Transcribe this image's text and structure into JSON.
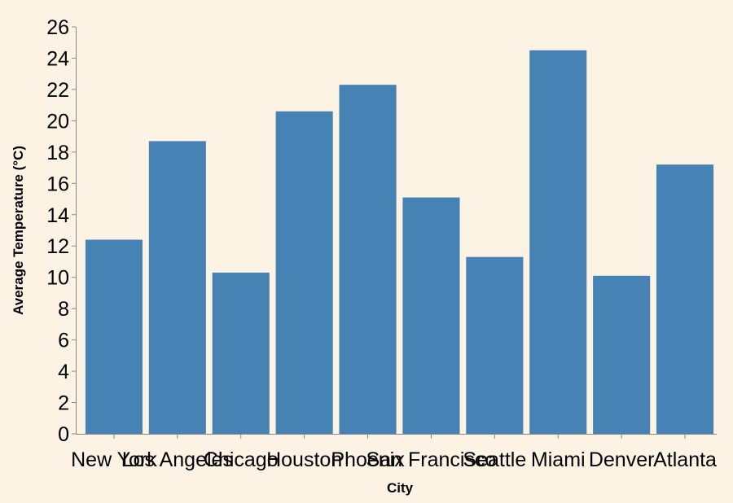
{
  "chart_data": {
    "type": "bar",
    "categories": [
      "New York",
      "Los Angeles",
      "Chicago",
      "Houston",
      "Phoenix",
      "San Francisco",
      "Seattle",
      "Miami",
      "Denver",
      "Atlanta"
    ],
    "values": [
      12.4,
      18.7,
      10.3,
      20.6,
      22.3,
      15.1,
      11.3,
      24.5,
      10.1,
      17.2
    ],
    "xlabel": "City",
    "ylabel": "Average Temperature (°C)",
    "ylim": [
      0,
      26
    ],
    "yticks": [
      0,
      2,
      4,
      6,
      8,
      10,
      12,
      14,
      16,
      18,
      20,
      22,
      24,
      26
    ],
    "grid": false,
    "bar_color": "#4682b4",
    "background_color": "#fdf3e4"
  }
}
